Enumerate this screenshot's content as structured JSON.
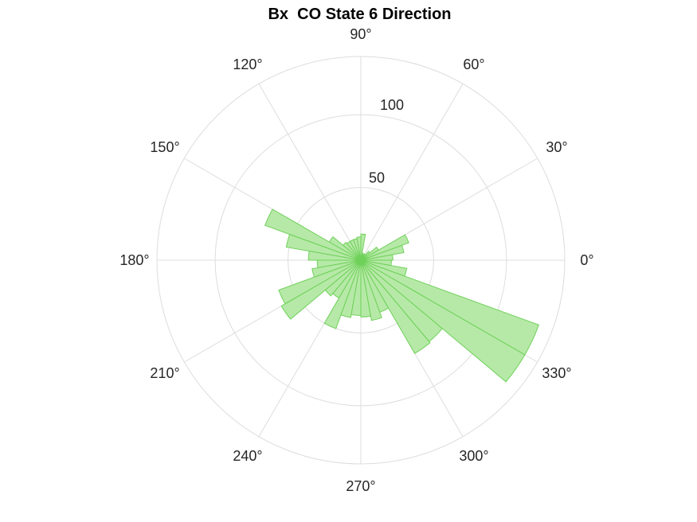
{
  "chart_data": {
    "type": "polar-histogram",
    "title": "Bx  CO State 6 Direction",
    "angle_unit": "degrees",
    "angle_tick_labels": [
      "0°",
      "30°",
      "60°",
      "90°",
      "120°",
      "150°",
      "180°",
      "210°",
      "240°",
      "270°",
      "300°",
      "330°"
    ],
    "angle_ticks": [
      0,
      30,
      60,
      90,
      120,
      150,
      180,
      210,
      240,
      270,
      300,
      330
    ],
    "radius_ticks": [
      50,
      100
    ],
    "radius_tick_labels": [
      "50",
      "100"
    ],
    "rmax": 140,
    "bin_width_deg": 10,
    "bins": [
      {
        "center": 5,
        "count": 22
      },
      {
        "center": 15,
        "count": 30
      },
      {
        "center": 25,
        "count": 35
      },
      {
        "center": 35,
        "count": 14
      },
      {
        "center": 45,
        "count": 8
      },
      {
        "center": 55,
        "count": 5
      },
      {
        "center": 65,
        "count": 4
      },
      {
        "center": 75,
        "count": 5
      },
      {
        "center": 85,
        "count": 18
      },
      {
        "center": 95,
        "count": 16
      },
      {
        "center": 105,
        "count": 15
      },
      {
        "center": 115,
        "count": 15
      },
      {
        "center": 125,
        "count": 15
      },
      {
        "center": 135,
        "count": 16
      },
      {
        "center": 145,
        "count": 25
      },
      {
        "center": 155,
        "count": 70
      },
      {
        "center": 165,
        "count": 52
      },
      {
        "center": 175,
        "count": 36
      },
      {
        "center": 185,
        "count": 30
      },
      {
        "center": 195,
        "count": 34
      },
      {
        "center": 205,
        "count": 60
      },
      {
        "center": 215,
        "count": 63
      },
      {
        "center": 225,
        "count": 32
      },
      {
        "center": 235,
        "count": 30
      },
      {
        "center": 245,
        "count": 50
      },
      {
        "center": 255,
        "count": 40
      },
      {
        "center": 265,
        "count": 38
      },
      {
        "center": 275,
        "count": 39
      },
      {
        "center": 285,
        "count": 42
      },
      {
        "center": 295,
        "count": 38
      },
      {
        "center": 305,
        "count": 74
      },
      {
        "center": 315,
        "count": 73
      },
      {
        "center": 325,
        "count": 130
      },
      {
        "center": 335,
        "count": 130
      },
      {
        "center": 345,
        "count": 32
      },
      {
        "center": 355,
        "count": 21
      }
    ],
    "colors": {
      "fill": "#b2e8a2",
      "edge": "#6fd15a",
      "grid": "#dddddd",
      "text": "#262626",
      "title": "#000000"
    },
    "grid": true
  }
}
